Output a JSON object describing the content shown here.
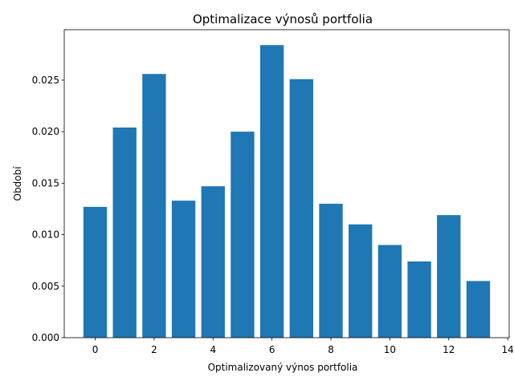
{
  "chart_data": {
    "type": "bar",
    "title": "Optimalizace výnosů portfolia",
    "xlabel": "Optimalizovaný výnos portfolia",
    "ylabel": "Období",
    "categories": [
      0,
      1,
      2,
      3,
      4,
      5,
      6,
      7,
      8,
      9,
      10,
      11,
      12,
      13
    ],
    "values": [
      0.0127,
      0.0204,
      0.0256,
      0.0133,
      0.0147,
      0.02,
      0.0284,
      0.0251,
      0.013,
      0.011,
      0.009,
      0.0074,
      0.0119,
      0.0055
    ],
    "xlim": [
      -1.05,
      14.05
    ],
    "ylim": [
      0,
      0.0299
    ],
    "xticks": [
      0,
      2,
      4,
      6,
      8,
      10,
      12,
      14
    ],
    "yticks": [
      0.0,
      0.005,
      0.01,
      0.015,
      0.02,
      0.025
    ],
    "xtick_labels": [
      "0",
      "2",
      "4",
      "6",
      "8",
      "10",
      "12",
      "14"
    ],
    "ytick_labels": [
      "0.000",
      "0.005",
      "0.010",
      "0.015",
      "0.020",
      "0.025"
    ],
    "bar_color": "#1f77b4",
    "grid": false,
    "legend": "none"
  }
}
